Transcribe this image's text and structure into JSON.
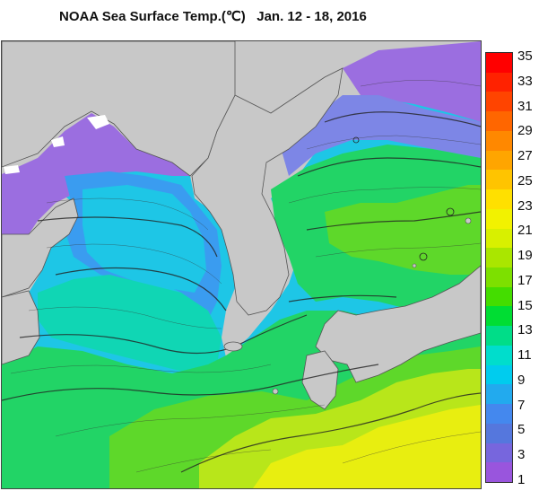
{
  "title": "NOAA Sea Surface Temp.(℃)   Jan. 12 - 18, 2016",
  "colorbar": {
    "labels": [
      "35",
      "33",
      "31",
      "29",
      "27",
      "25",
      "23",
      "21",
      "19",
      "17",
      "15",
      "13",
      "11",
      "9",
      "7",
      "5",
      "3",
      "1"
    ],
    "colors": [
      "#ff0000",
      "#ff2200",
      "#ff4400",
      "#ff6600",
      "#ff8800",
      "#ffa500",
      "#ffc400",
      "#ffe000",
      "#f2f200",
      "#d8f000",
      "#aae600",
      "#7de000",
      "#44dd00",
      "#00dd33",
      "#00dd88",
      "#00ddcc",
      "#00ccee",
      "#22aaee",
      "#4488ee",
      "#5577dd",
      "#7766dd",
      "#9955dd"
    ]
  },
  "map_colors": {
    "land": "#c8c8c8",
    "purple": "#9b6ee0",
    "violet_blue": "#7d86e6",
    "blue": "#3a9cf0",
    "cyan": "#1ec6e6",
    "teal": "#10d6b4",
    "green": "#22d466",
    "lime": "#5ed82a",
    "yellow_green": "#b8e61a",
    "yellow": "#e8ee10",
    "ice": "#ffffff"
  }
}
